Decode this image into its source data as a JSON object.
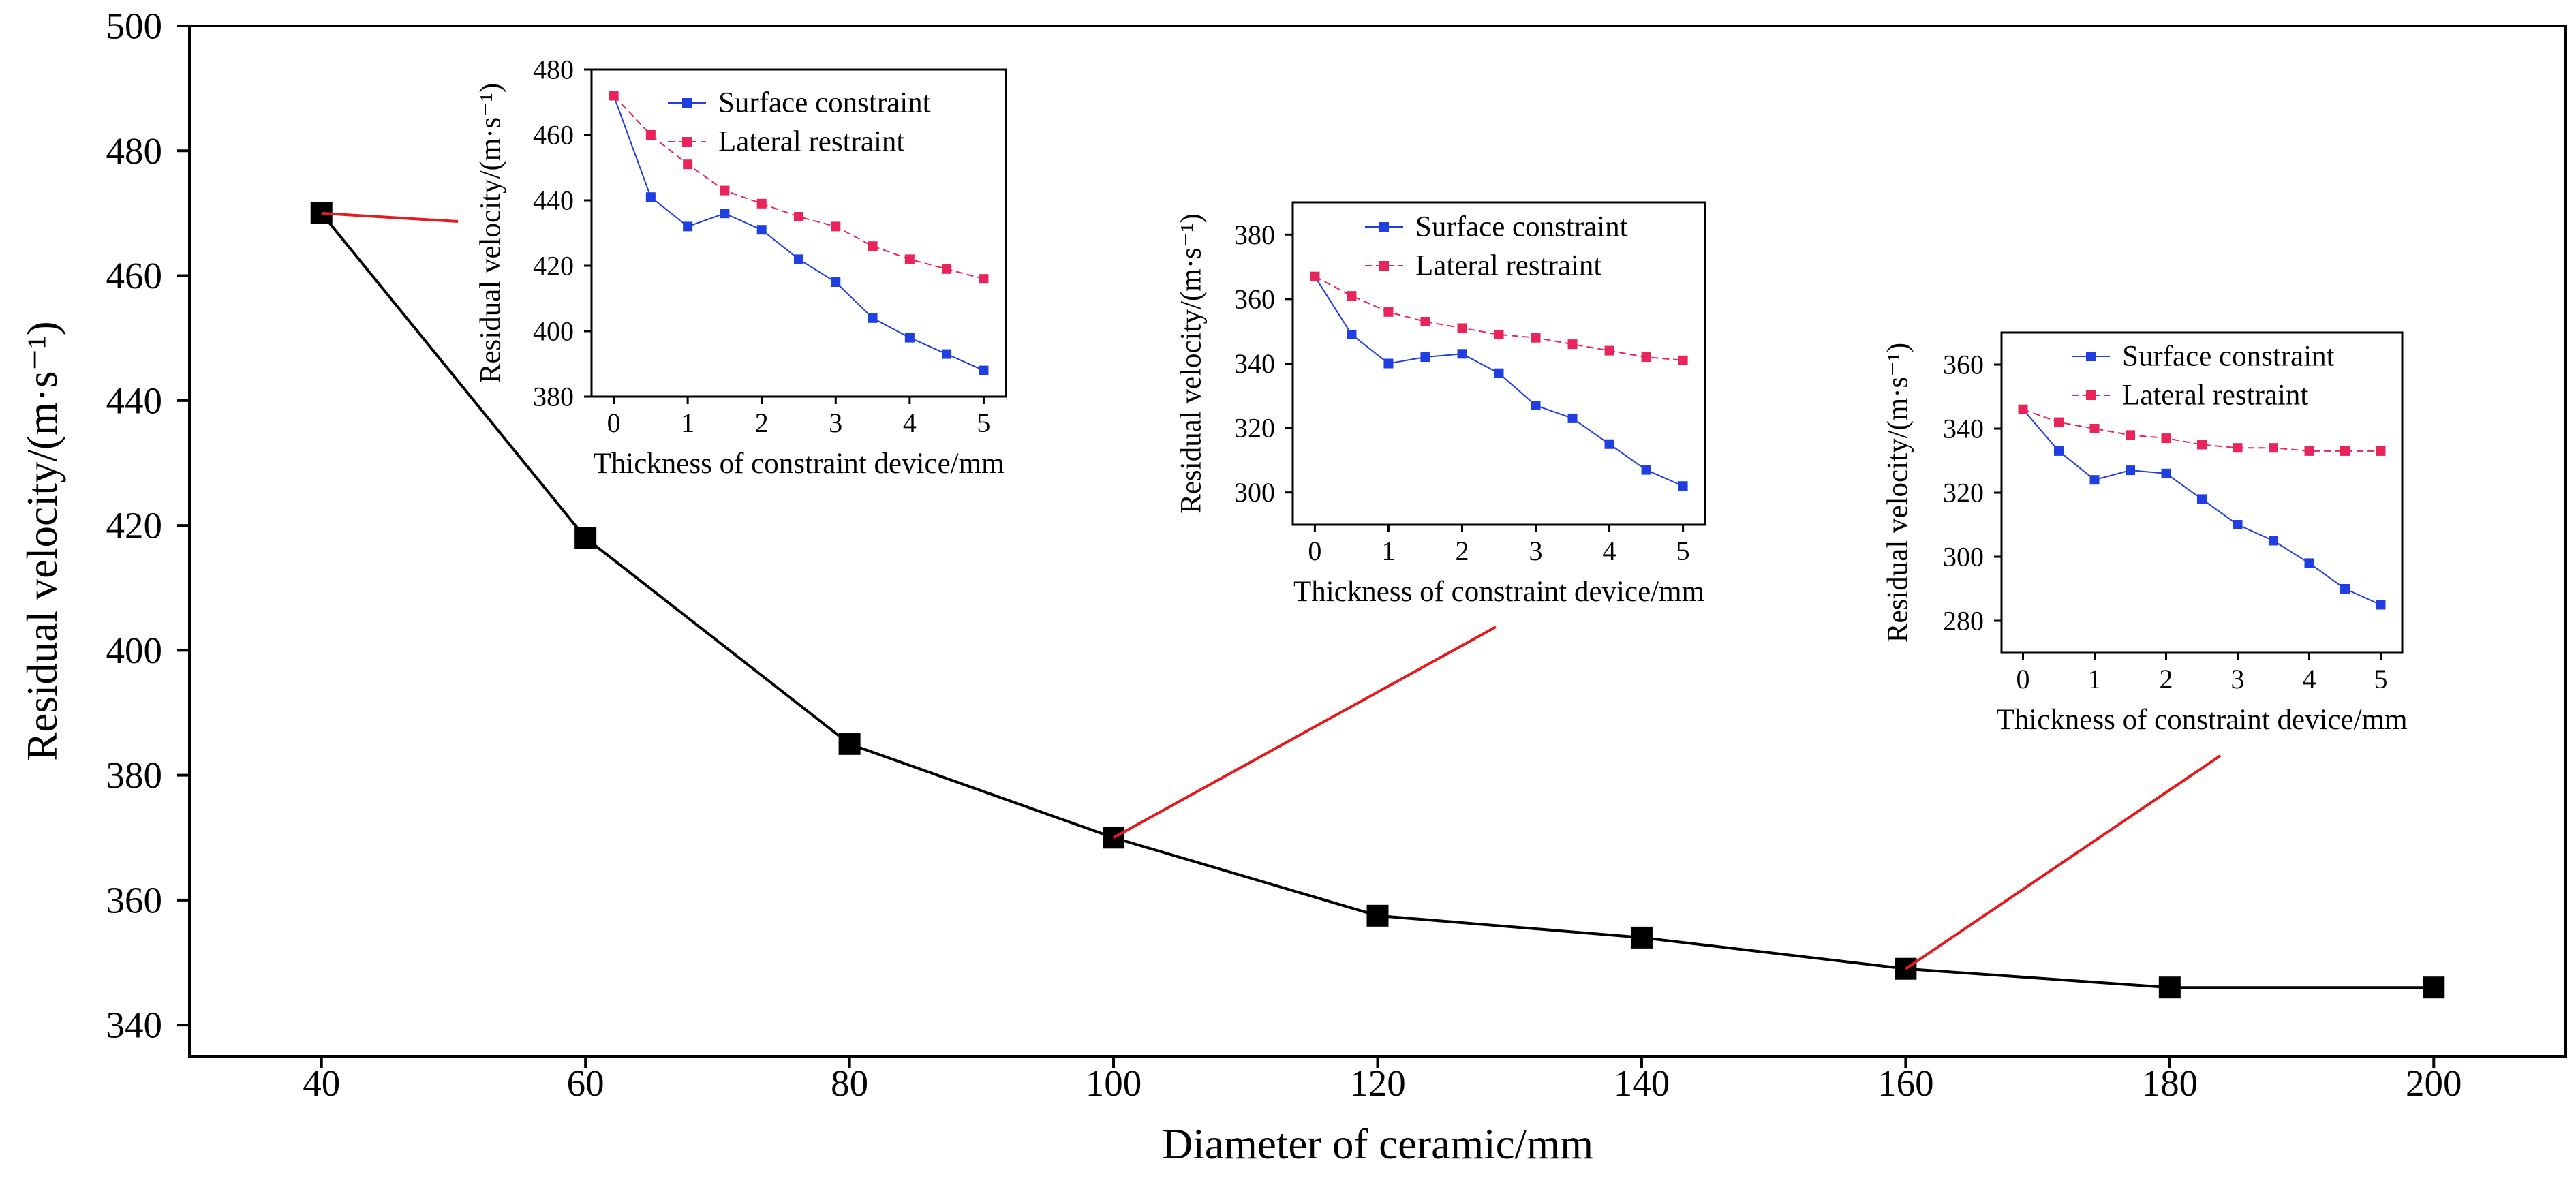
{
  "chart_data": [
    {
      "id": "main",
      "type": "line",
      "title": "",
      "xlabel": "Diameter of ceramic/mm",
      "ylabel": "Residual velocity/(m·s⁻¹)",
      "xlim": [
        30,
        210
      ],
      "ylim": [
        335,
        500
      ],
      "xticks": [
        40,
        60,
        80,
        100,
        120,
        140,
        160,
        180,
        200
      ],
      "yticks": [
        340,
        360,
        380,
        400,
        420,
        440,
        460,
        480,
        500
      ],
      "grid": false,
      "x": [
        40,
        60,
        80,
        100,
        120,
        140,
        160,
        180,
        200
      ],
      "series": [
        {
          "name": "Residual velocity",
          "color": "#000000",
          "marker": "square",
          "values": [
            470,
            418,
            385,
            370,
            357.5,
            354,
            349,
            346,
            346
          ]
        }
      ]
    },
    {
      "id": "inset-40",
      "type": "line",
      "title": "",
      "xlabel": "Thickness of constraint device/mm",
      "ylabel": "Residual velocity/(m·s⁻¹)",
      "xlim": [
        -0.3,
        5.3
      ],
      "ylim": [
        380,
        480
      ],
      "xticks": [
        0,
        1,
        2,
        3,
        4,
        5
      ],
      "yticks": [
        380,
        400,
        420,
        440,
        460,
        480
      ],
      "legend": "top-right",
      "x": [
        0,
        0.5,
        1,
        1.5,
        2,
        2.5,
        3,
        3.5,
        4,
        4.5,
        5
      ],
      "series": [
        {
          "name": "Surface constraint",
          "color": "#1f3fe0",
          "marker": "square",
          "values": [
            472,
            441,
            432,
            436,
            431,
            422,
            415,
            404,
            398,
            393,
            388
          ]
        },
        {
          "name": "Lateral restraint",
          "color": "#e8245a",
          "marker": "square",
          "values": [
            472,
            460,
            451,
            443,
            439,
            435,
            432,
            426,
            422,
            419,
            416
          ]
        }
      ]
    },
    {
      "id": "inset-100",
      "type": "line",
      "title": "",
      "xlabel": "Thickness of constraint device/mm",
      "ylabel": "Residual velocity/(m·s⁻¹)",
      "xlim": [
        -0.3,
        5.3
      ],
      "ylim": [
        290,
        390
      ],
      "xticks": [
        0,
        1,
        2,
        3,
        4,
        5
      ],
      "yticks": [
        300,
        320,
        340,
        360,
        380
      ],
      "legend": "top-right",
      "x": [
        0,
        0.5,
        1,
        1.5,
        2,
        2.5,
        3,
        3.5,
        4,
        4.5,
        5
      ],
      "series": [
        {
          "name": "Surface constraint",
          "color": "#1f3fe0",
          "marker": "square",
          "values": [
            367,
            349,
            340,
            342,
            343,
            337,
            327,
            323,
            315,
            307,
            302
          ]
        },
        {
          "name": "Lateral restraint",
          "color": "#e8245a",
          "marker": "square",
          "values": [
            367,
            361,
            356,
            353,
            351,
            349,
            348,
            346,
            344,
            342,
            341
          ]
        }
      ]
    },
    {
      "id": "inset-160",
      "type": "line",
      "title": "",
      "xlabel": "Thickness of constraint device/mm",
      "ylabel": "Residual velocity/(m·s⁻¹)",
      "xlim": [
        -0.3,
        5.3
      ],
      "ylim": [
        270,
        370
      ],
      "xticks": [
        0,
        1,
        2,
        3,
        4,
        5
      ],
      "yticks": [
        280,
        300,
        320,
        340,
        360
      ],
      "legend": "top-right",
      "x": [
        0,
        0.5,
        1,
        1.5,
        2,
        2.5,
        3,
        3.5,
        4,
        4.5,
        5
      ],
      "series": [
        {
          "name": "Surface constraint",
          "color": "#1f3fe0",
          "marker": "square",
          "values": [
            346,
            333,
            324,
            327,
            326,
            318,
            310,
            305,
            298,
            290,
            285
          ]
        },
        {
          "name": "Lateral restraint",
          "color": "#e8245a",
          "marker": "square",
          "values": [
            346,
            342,
            340,
            338,
            337,
            335,
            334,
            334,
            333,
            333,
            333
          ]
        }
      ]
    }
  ],
  "callouts": [
    {
      "from_chart": "main",
      "point_x": 40,
      "to_chart": "inset-40"
    },
    {
      "from_chart": "main",
      "point_x": 100,
      "to_chart": "inset-100"
    },
    {
      "from_chart": "main",
      "point_x": 160,
      "to_chart": "inset-160"
    }
  ],
  "callout_color": "#e41a1c"
}
